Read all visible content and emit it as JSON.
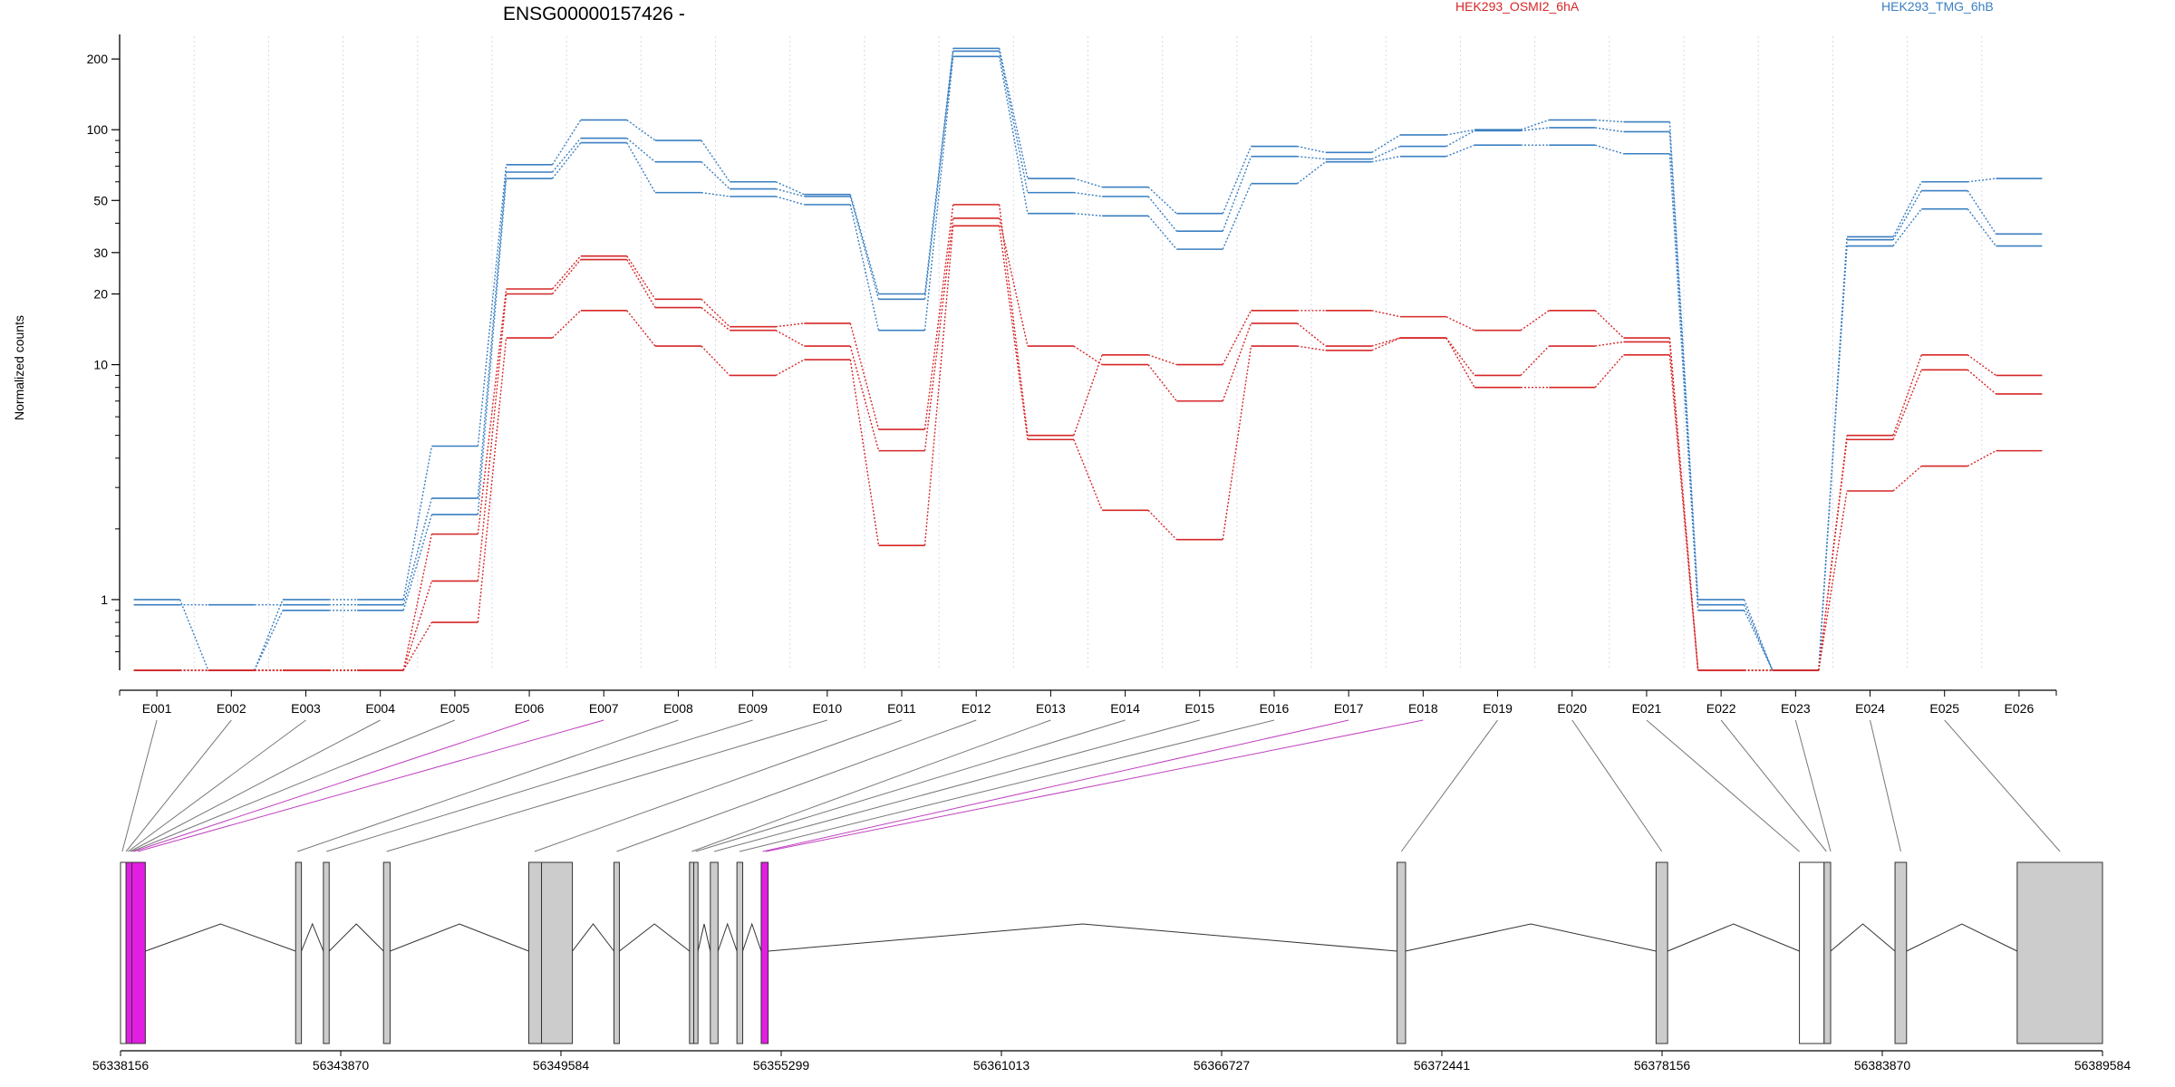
{
  "chart_data": {
    "type": "line",
    "title": "ENSG00000157426 -",
    "ylabel": "Normalized counts",
    "y_scale": "log",
    "ylim": [
      0.5,
      250
    ],
    "yticks": [
      1,
      10,
      20,
      30,
      50,
      100,
      200
    ],
    "ytick_labels": [
      "1",
      "10",
      "20",
      "30",
      "50",
      "100",
      "200"
    ],
    "categories": [
      "E001",
      "E002",
      "E003",
      "E004",
      "E005",
      "E006",
      "E007",
      "E008",
      "E009",
      "E010",
      "E011",
      "E012",
      "E013",
      "E014",
      "E015",
      "E016",
      "E017",
      "E018",
      "E019",
      "E020",
      "E021",
      "E022",
      "E023",
      "E024",
      "E025",
      "E026"
    ],
    "legend": [
      {
        "name": "HEK293_OSMI2_6hA",
        "color": "#d62728"
      },
      {
        "name": "HEK293_TMG_6hB",
        "color": "#3a7fc1"
      }
    ],
    "series": [
      {
        "group": "HEK293_TMG_6hB",
        "color": "#3a7fc1",
        "values": [
          1.0,
          0.5,
          1.0,
          1.0,
          4.5,
          71,
          110,
          90,
          60,
          53,
          20,
          222,
          62,
          57,
          44,
          85,
          80,
          95,
          100,
          110,
          108,
          1.0,
          0.5,
          35,
          60,
          62
        ]
      },
      {
        "group": "HEK293_TMG_6hB",
        "color": "#3a7fc1",
        "values": [
          0.95,
          0.95,
          0.95,
          0.95,
          2.7,
          66,
          92,
          73,
          56,
          52,
          19,
          216,
          54,
          52,
          37,
          77,
          75,
          85,
          99,
          102,
          98,
          0.95,
          0.5,
          34,
          55,
          36
        ]
      },
      {
        "group": "HEK293_TMG_6hB",
        "color": "#3a7fc1",
        "values": [
          0.5,
          0.5,
          0.9,
          0.9,
          2.3,
          62,
          88,
          54,
          52,
          48,
          14,
          205,
          44,
          43,
          31,
          59,
          73,
          77,
          86,
          86,
          79,
          0.9,
          0.5,
          32,
          46,
          32
        ]
      },
      {
        "group": "HEK293_OSMI2_6hA",
        "color": "#d62728",
        "values": [
          0.5,
          0.5,
          0.5,
          0.5,
          1.9,
          21,
          29,
          19,
          14.5,
          15,
          5.3,
          48,
          5.0,
          11,
          10,
          17,
          17,
          16,
          14,
          17,
          13,
          0.5,
          0.5,
          5.0,
          11,
          9
        ]
      },
      {
        "group": "HEK293_OSMI2_6hA",
        "color": "#d62728",
        "values": [
          0.5,
          0.5,
          0.5,
          0.5,
          1.2,
          20,
          28,
          17.5,
          14,
          12,
          4.3,
          42,
          12,
          10,
          7.0,
          15,
          12,
          13,
          9,
          12,
          12.5,
          0.5,
          0.5,
          4.8,
          9.5,
          7.5
        ]
      },
      {
        "group": "HEK293_OSMI2_6hA",
        "color": "#d62728",
        "values": [
          0.5,
          0.5,
          0.5,
          0.5,
          0.8,
          13,
          17,
          12,
          9,
          10.5,
          1.7,
          39,
          4.8,
          2.4,
          1.8,
          12,
          11.5,
          13,
          8,
          8,
          11,
          0.5,
          0.5,
          2.9,
          3.7,
          4.3
        ]
      }
    ],
    "genomic_coordinates": [
      "56338156",
      "56343870",
      "56349584",
      "56355299",
      "56361013",
      "56366727",
      "56372441",
      "56378156",
      "56383870",
      "56389584"
    ]
  }
}
